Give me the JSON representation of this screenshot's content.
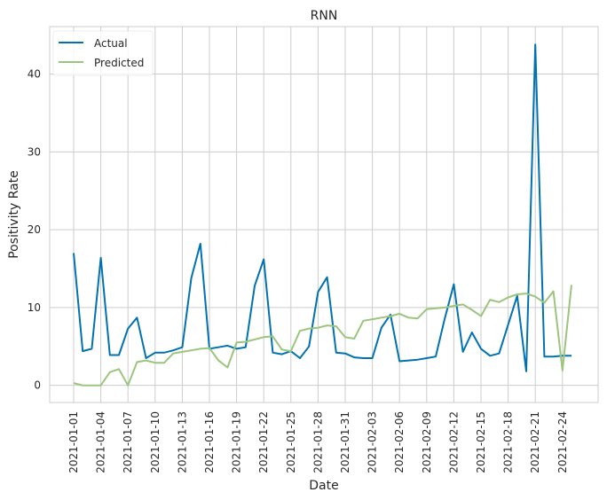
{
  "chart_data": {
    "type": "line",
    "title": "RNN",
    "xlabel": "Date",
    "ylabel": "Positivity Rate",
    "x_start": "2021-01-01",
    "x_ticks": [
      "2021-01-01",
      "2021-01-04",
      "2021-01-07",
      "2021-01-10",
      "2021-01-13",
      "2021-01-16",
      "2021-01-19",
      "2021-01-22",
      "2021-01-25",
      "2021-01-28",
      "2021-01-31",
      "2021-02-03",
      "2021-02-06",
      "2021-02-09",
      "2021-02-12",
      "2021-02-15",
      "2021-02-18",
      "2021-02-21",
      "2021-02-24"
    ],
    "y_ticks": [
      "0",
      "10",
      "20",
      "30",
      "40"
    ],
    "ylim": [
      -2.2,
      46.1
    ],
    "grid": true,
    "legend_position": "top-left",
    "series": [
      {
        "name": "Actual",
        "color": "#0072b2",
        "values": [
          17.0,
          4.4,
          4.7,
          16.4,
          3.9,
          3.9,
          7.3,
          8.7,
          3.5,
          4.2,
          4.2,
          4.5,
          4.9,
          13.8,
          18.2,
          4.7,
          4.9,
          5.1,
          4.7,
          4.9,
          12.8,
          16.2,
          4.2,
          4.0,
          4.4,
          3.5,
          5.0,
          12.0,
          13.9,
          4.2,
          4.1,
          3.6,
          3.5,
          3.5,
          7.4,
          9.1,
          3.1,
          3.2,
          3.3,
          3.5,
          3.7,
          8.6,
          13.0,
          4.3,
          6.8,
          4.7,
          3.8,
          4.1,
          7.8,
          11.5,
          1.8,
          43.8,
          3.7,
          3.7,
          3.8,
          3.8
        ]
      },
      {
        "name": "Predicted",
        "color": "#9bc57d",
        "values": [
          0.3,
          0.0,
          0.0,
          0.0,
          1.7,
          2.1,
          0.0,
          3.0,
          3.2,
          2.9,
          2.9,
          4.1,
          4.3,
          4.5,
          4.7,
          4.8,
          3.2,
          2.3,
          5.5,
          5.6,
          5.9,
          6.2,
          6.3,
          4.6,
          4.4,
          7.0,
          7.3,
          7.4,
          7.7,
          7.6,
          6.2,
          6.0,
          8.3,
          8.5,
          8.7,
          8.9,
          9.2,
          8.7,
          8.6,
          9.8,
          9.9,
          10.0,
          10.2,
          10.4,
          9.7,
          8.9,
          11.0,
          10.7,
          11.3,
          11.7,
          11.8,
          11.4,
          10.6,
          12.1,
          1.9,
          12.9
        ]
      }
    ]
  }
}
